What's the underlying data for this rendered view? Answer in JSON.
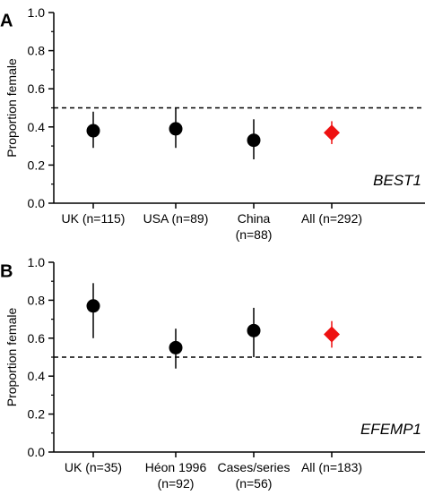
{
  "chart_data": [
    {
      "type": "scatter",
      "panel_label": "A",
      "annotation": "BEST1",
      "ylabel": "Proportion female",
      "ylim": [
        0,
        1.0
      ],
      "yticks": [
        "0.0",
        "0.2",
        "0.4",
        "0.6",
        "0.8",
        "1.0"
      ],
      "reference_line": 0.5,
      "categories": [
        [
          "UK (n=115)"
        ],
        [
          "USA (n=89)"
        ],
        [
          "China",
          "(n=88)"
        ],
        [
          "All (n=292)"
        ]
      ],
      "points": [
        {
          "y": 0.38,
          "low": 0.29,
          "high": 0.48,
          "marker": "circle",
          "color": "#000000"
        },
        {
          "y": 0.39,
          "low": 0.29,
          "high": 0.5,
          "marker": "circle",
          "color": "#000000"
        },
        {
          "y": 0.33,
          "low": 0.23,
          "high": 0.44,
          "marker": "circle",
          "color": "#000000"
        },
        {
          "y": 0.37,
          "low": 0.31,
          "high": 0.43,
          "marker": "diamond",
          "color": "#ee1111"
        }
      ]
    },
    {
      "type": "scatter",
      "panel_label": "B",
      "annotation": "EFEMP1",
      "ylabel": "Proportion female",
      "ylim": [
        0,
        1.0
      ],
      "yticks": [
        "0.0",
        "0.2",
        "0.4",
        "0.6",
        "0.8",
        "1.0"
      ],
      "reference_line": 0.5,
      "categories": [
        [
          "UK (n=35)"
        ],
        [
          "Héon 1996",
          "(n=92)"
        ],
        [
          "Cases/series",
          "(n=56)"
        ],
        [
          "All (n=183)"
        ]
      ],
      "points": [
        {
          "y": 0.77,
          "low": 0.6,
          "high": 0.89,
          "marker": "circle",
          "color": "#000000"
        },
        {
          "y": 0.55,
          "low": 0.44,
          "high": 0.65,
          "marker": "circle",
          "color": "#000000"
        },
        {
          "y": 0.64,
          "low": 0.5,
          "high": 0.76,
          "marker": "circle",
          "color": "#000000"
        },
        {
          "y": 0.62,
          "low": 0.55,
          "high": 0.69,
          "marker": "diamond",
          "color": "#ee1111"
        }
      ]
    }
  ]
}
